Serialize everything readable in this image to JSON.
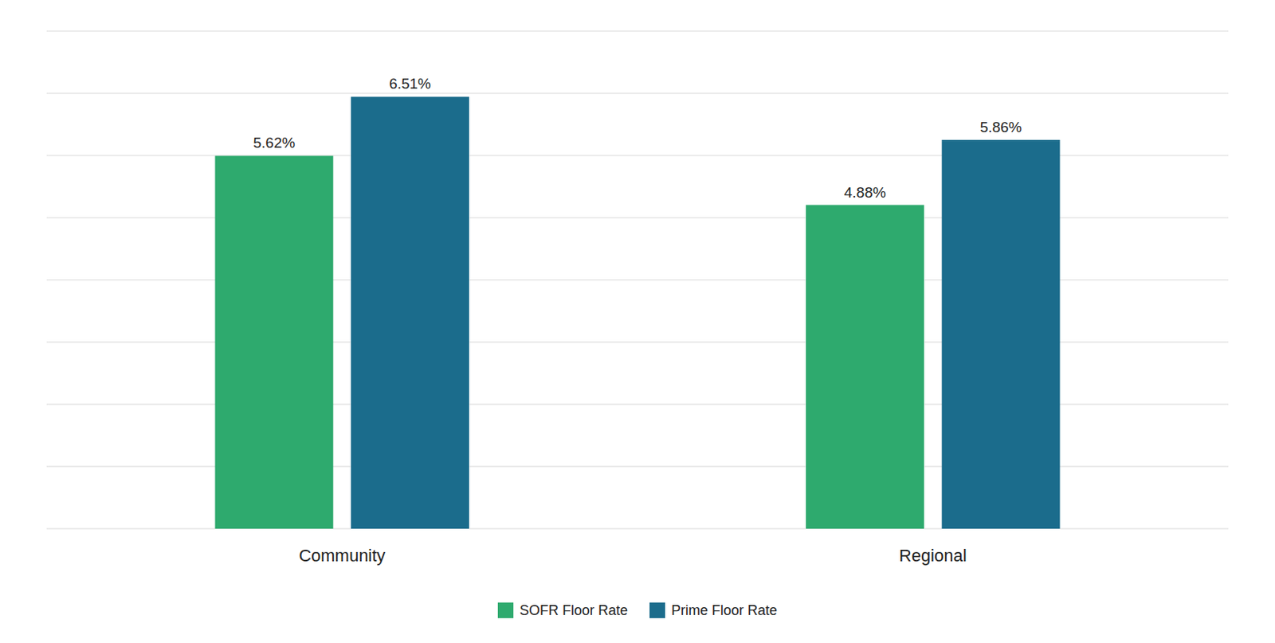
{
  "chart_data": {
    "type": "bar",
    "categories": [
      "Community",
      "Regional"
    ],
    "series": [
      {
        "name": "SOFR Floor Rate",
        "color": "#2eaa6e",
        "values": [
          5.62,
          4.88
        ],
        "value_labels": [
          "5.62%",
          "4.88%"
        ]
      },
      {
        "name": "Prime Floor Rate",
        "color": "#1b6c8c",
        "values": [
          6.51,
          5.86
        ],
        "value_labels": [
          "6.51%",
          "5.86%"
        ]
      }
    ],
    "ylim": [
      0,
      7.5
    ],
    "yticks": [
      0,
      0.9375,
      1.875,
      2.8125,
      3.75,
      4.6875,
      5.625,
      6.5625,
      7.5
    ],
    "grid": true,
    "tick_labels": "x",
    "data_labels": true,
    "legend": "bottom"
  }
}
